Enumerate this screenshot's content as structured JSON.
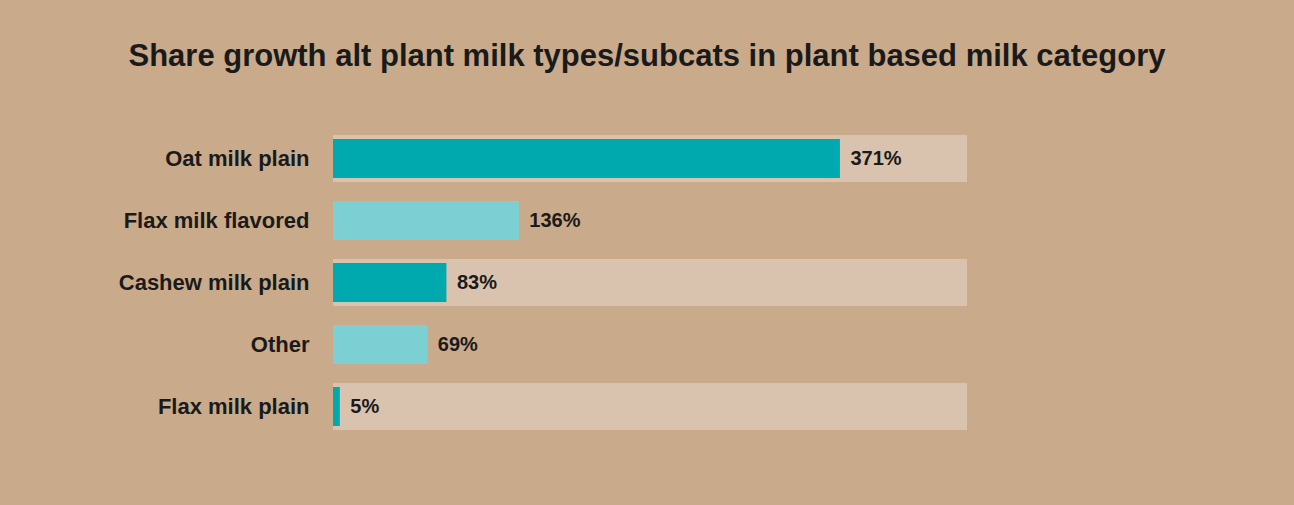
{
  "chart_data": {
    "type": "bar",
    "title": "Share growth alt plant milk types/subcats in plant based milk category",
    "orientation": "horizontal",
    "categories": [
      "Oat milk plain",
      "Flax milk flavored",
      "Cashew milk plain",
      "Other",
      "Flax milk plain"
    ],
    "values": [
      371,
      136,
      83,
      69,
      5
    ],
    "value_labels": [
      "371%",
      "136%",
      "83%",
      "69%",
      "5%"
    ],
    "colors": [
      "#00a9ad",
      "#7ccfd3",
      "#00a9ad",
      "#7ccfd3",
      "#00a9ad"
    ],
    "xlim": [
      0,
      464
    ],
    "data_labels": true,
    "tick_labels": "y",
    "grid": false
  }
}
